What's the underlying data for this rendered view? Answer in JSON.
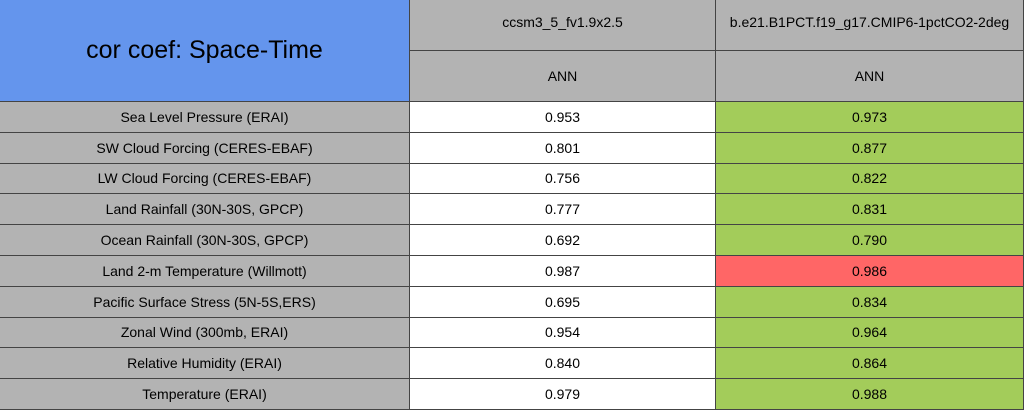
{
  "table": {
    "title": "cor coef: Space-Time",
    "columns": [
      "ccsm3_5_fv1.9x2.5",
      "b.e21.B1PCT.f19_g17.CMIP6-1pctCO2-2deg"
    ],
    "subheaders": [
      "ANN",
      "ANN"
    ],
    "colors": {
      "title": "#6495ed",
      "label": "#b3b3b3",
      "plain": "#ffffff"
    },
    "rows": [
      {
        "label": "Sea Level Pressure (ERAI)",
        "values": [
          "0.953",
          "0.973"
        ],
        "colors": [
          "#ffffff",
          "#a3cc5a"
        ]
      },
      {
        "label": "SW Cloud Forcing (CERES-EBAF)",
        "values": [
          "0.801",
          "0.877"
        ],
        "colors": [
          "#ffffff",
          "#a3cc5a"
        ]
      },
      {
        "label": "LW Cloud Forcing (CERES-EBAF)",
        "values": [
          "0.756",
          "0.822"
        ],
        "colors": [
          "#ffffff",
          "#a3cc5a"
        ]
      },
      {
        "label": "Land Rainfall (30N-30S, GPCP)",
        "values": [
          "0.777",
          "0.831"
        ],
        "colors": [
          "#ffffff",
          "#a3cc5a"
        ]
      },
      {
        "label": "Ocean Rainfall (30N-30S, GPCP)",
        "values": [
          "0.692",
          "0.790"
        ],
        "colors": [
          "#ffffff",
          "#a3cc5a"
        ]
      },
      {
        "label": "Land 2-m Temperature (Willmott)",
        "values": [
          "0.987",
          "0.986"
        ],
        "colors": [
          "#ffffff",
          "#ff6666"
        ]
      },
      {
        "label": "Pacific Surface Stress (5N-5S,ERS)",
        "values": [
          "0.695",
          "0.834"
        ],
        "colors": [
          "#ffffff",
          "#a3cc5a"
        ]
      },
      {
        "label": "Zonal Wind (300mb, ERAI)",
        "values": [
          "0.954",
          "0.964"
        ],
        "colors": [
          "#ffffff",
          "#a3cc5a"
        ]
      },
      {
        "label": "Relative Humidity (ERAI)",
        "values": [
          "0.840",
          "0.864"
        ],
        "colors": [
          "#ffffff",
          "#a3cc5a"
        ]
      },
      {
        "label": "Temperature (ERAI)",
        "values": [
          "0.979",
          "0.988"
        ],
        "colors": [
          "#ffffff",
          "#a3cc5a"
        ]
      }
    ]
  }
}
